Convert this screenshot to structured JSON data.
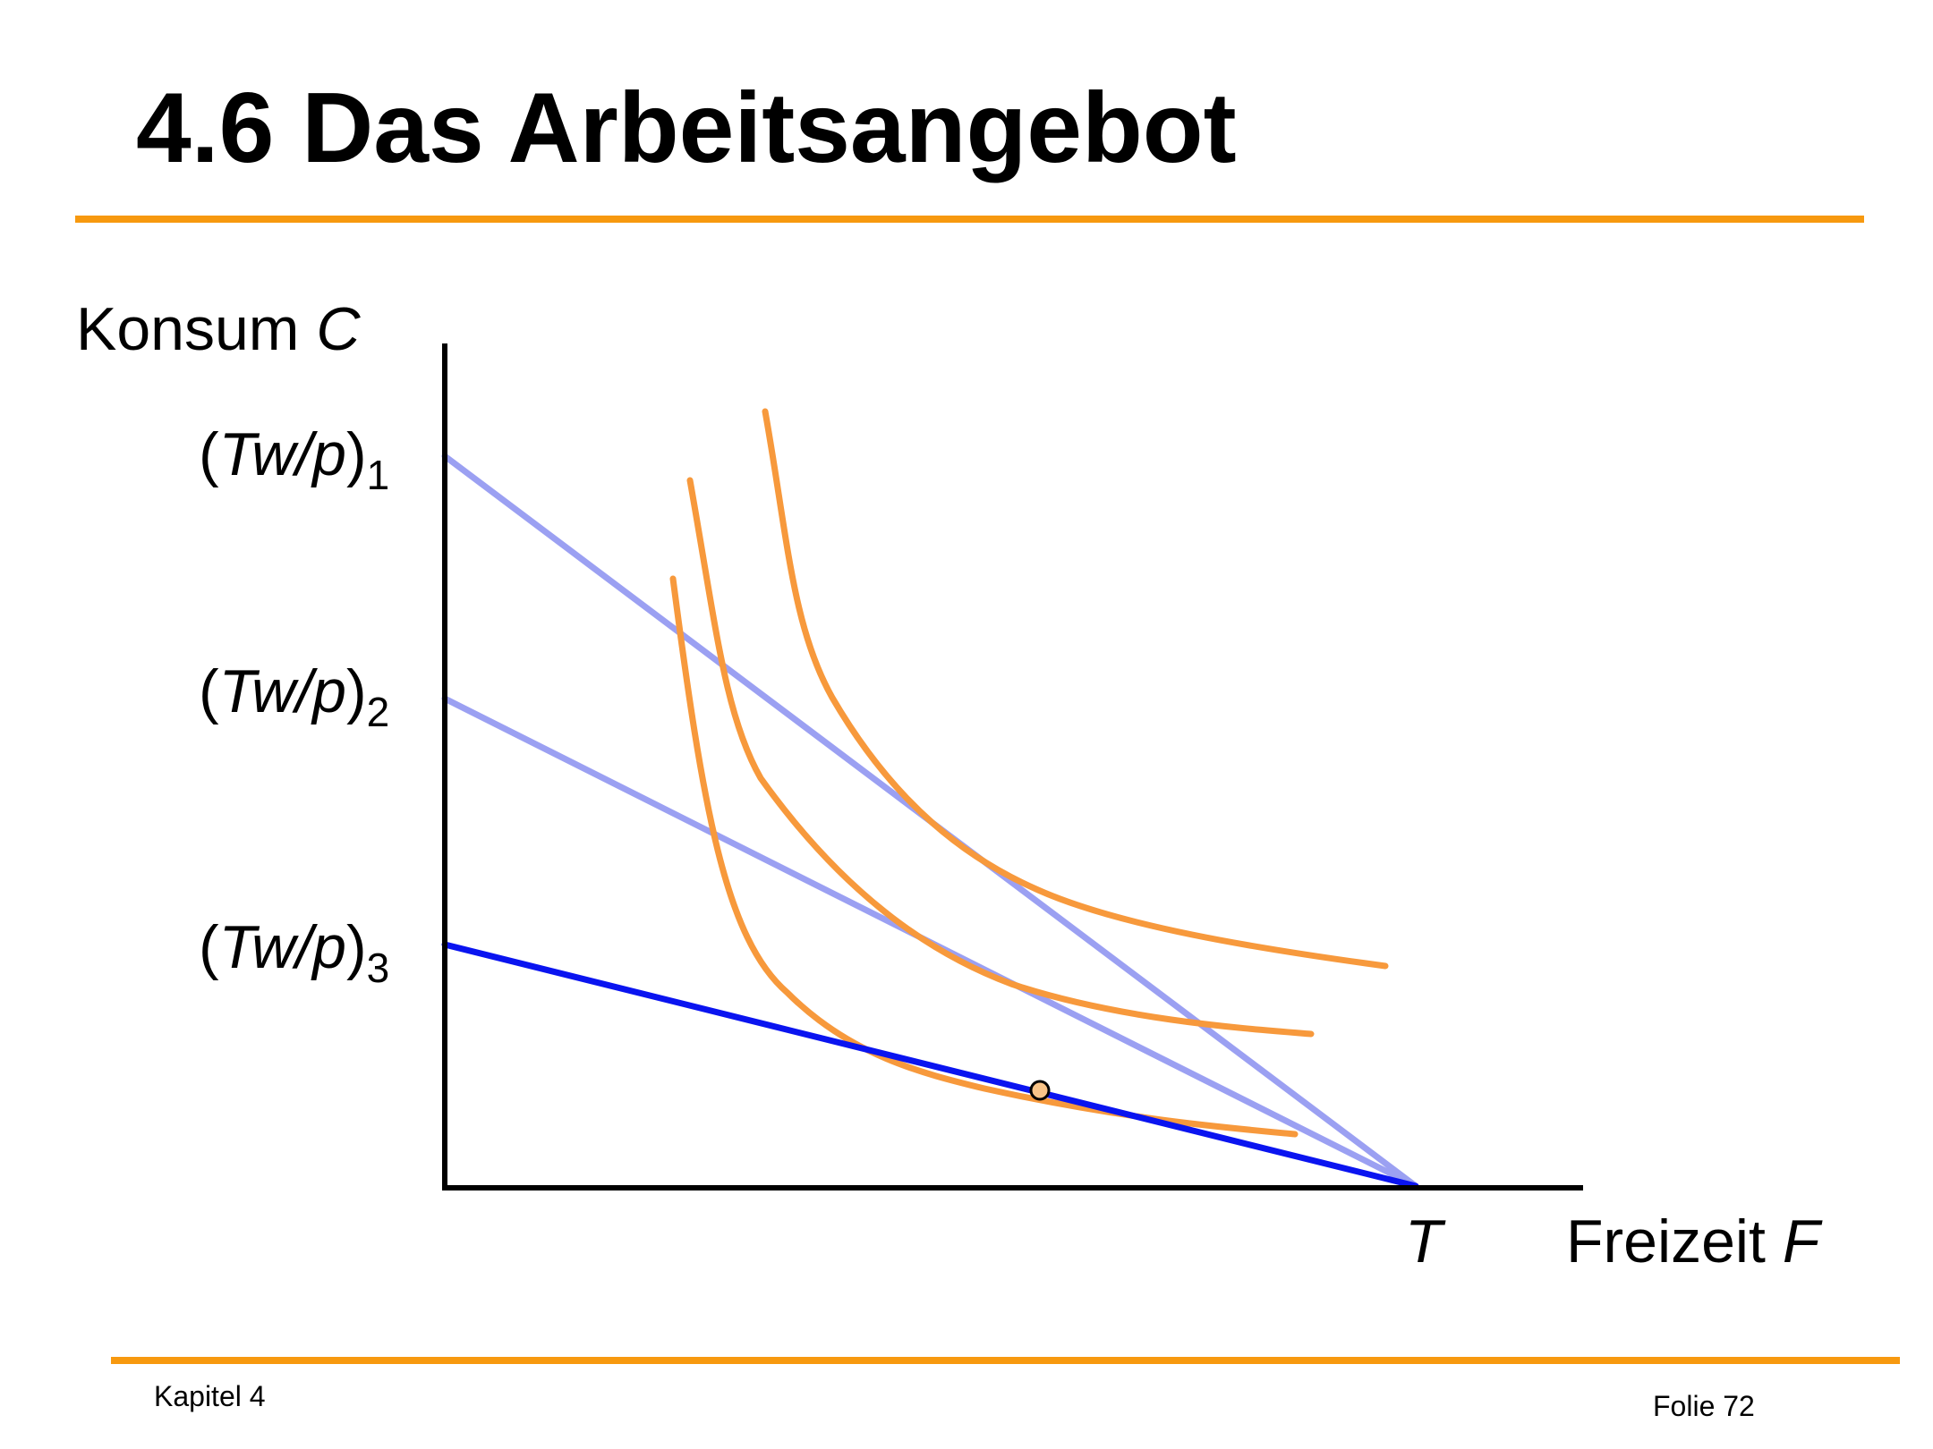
{
  "title": "4.6 Das Arbeitsangebot",
  "y_axis": {
    "name": "Konsum",
    "symbol": "C"
  },
  "x_axis": {
    "name": "Freizeit",
    "symbol": "F",
    "endpoint": "T"
  },
  "intercepts": [
    {
      "base": "Tw/p",
      "index": "1"
    },
    {
      "base": "Tw/p",
      "index": "2"
    },
    {
      "base": "Tw/p",
      "index": "3"
    }
  ],
  "colors": {
    "accent_rule": "#f7990f",
    "indifference_curve": "#f7993c",
    "budget_line_light": "#9ba0f2",
    "budget_line_active": "#0a14f0",
    "optimum_point": "#f9c488",
    "axis": "#000000"
  },
  "footer": {
    "chapter": "Kapitel 4",
    "slide": "Folie 72"
  }
}
